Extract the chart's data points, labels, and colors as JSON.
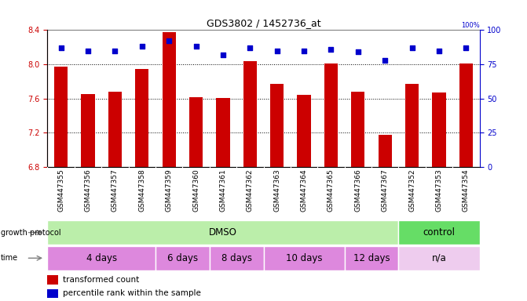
{
  "title": "GDS3802 / 1452736_at",
  "samples": [
    "GSM447355",
    "GSM447356",
    "GSM447357",
    "GSM447358",
    "GSM447359",
    "GSM447360",
    "GSM447361",
    "GSM447362",
    "GSM447363",
    "GSM447364",
    "GSM447365",
    "GSM447366",
    "GSM447367",
    "GSM447352",
    "GSM447353",
    "GSM447354"
  ],
  "bar_values": [
    7.97,
    7.65,
    7.68,
    7.95,
    8.38,
    7.62,
    7.61,
    8.04,
    7.77,
    7.64,
    8.01,
    7.68,
    7.18,
    7.77,
    7.67,
    8.01
  ],
  "percentile_values": [
    87,
    85,
    85,
    88,
    92,
    88,
    82,
    87,
    85,
    85,
    86,
    84,
    78,
    87,
    85,
    87
  ],
  "bar_color": "#cc0000",
  "dot_color": "#0000cc",
  "ylim_left": [
    6.8,
    8.4
  ],
  "ylim_right": [
    0,
    100
  ],
  "yticks_left": [
    6.8,
    7.2,
    7.6,
    8.0,
    8.4
  ],
  "yticks_right": [
    0,
    25,
    50,
    75,
    100
  ],
  "grid_values": [
    8.0,
    7.6,
    7.2
  ],
  "dmso_color": "#bbeeaa",
  "control_color": "#66dd66",
  "time_color_dmso": "#dd88dd",
  "time_color_na": "#eeccee",
  "legend_items": [
    {
      "label": "transformed count",
      "color": "#cc0000"
    },
    {
      "label": "percentile rank within the sample",
      "color": "#0000cc"
    }
  ],
  "background_color": "#ffffff",
  "bar_width": 0.5,
  "tick_label_fontsize": 7,
  "xtick_gray": "#dddddd"
}
